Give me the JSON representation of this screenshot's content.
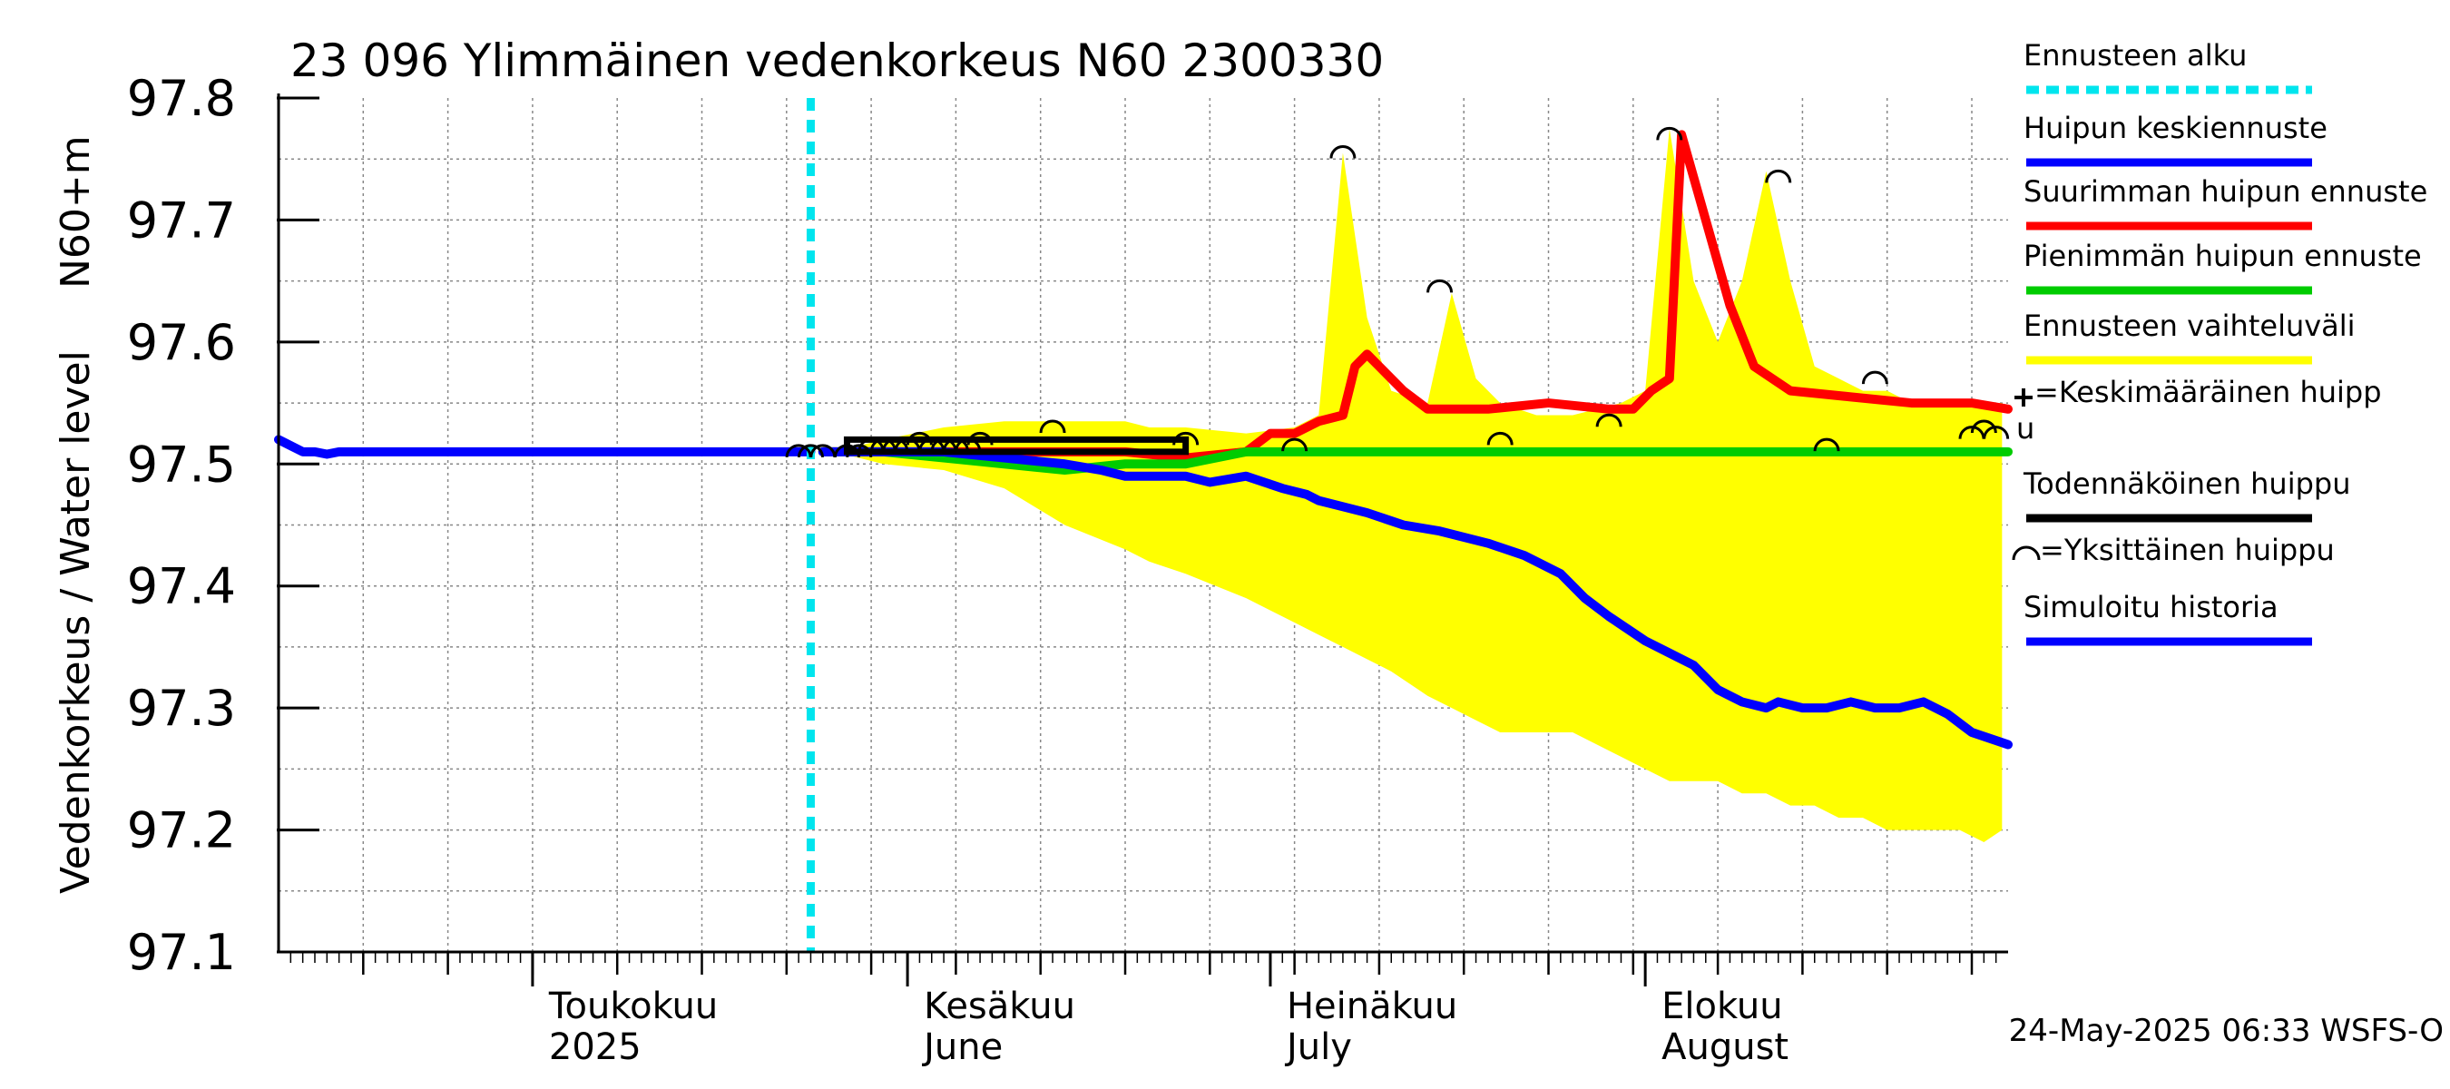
{
  "chart_data": {
    "type": "line",
    "title": "23 096 Ylimmäinen vedenkorkeus N60 2300330",
    "ylabel_left": "Vedenkorkeus / Water level",
    "ylabel_right": "N60+m",
    "ylim": [
      97.1,
      97.8
    ],
    "yticks": [
      97.1,
      97.2,
      97.3,
      97.4,
      97.5,
      97.6,
      97.7,
      97.8
    ],
    "x_unit": "day-of-year 2025",
    "xlim": [
      100,
      243
    ],
    "month_labels": [
      {
        "day": 121,
        "fi": "Toukokuu",
        "en": "2025"
      },
      {
        "day": 152,
        "fi": "Kesäkuu",
        "en": "June"
      },
      {
        "day": 182,
        "fi": "Heinäkuu",
        "en": "July"
      },
      {
        "day": 213,
        "fi": "Elokuu",
        "en": "August"
      }
    ],
    "forecast_start_day": 144,
    "series": [
      {
        "name": "Ennusteen vaihteluväli",
        "kind": "band",
        "color": "#ffff00",
        "x": [
          146,
          150,
          155,
          160,
          165,
          170,
          172,
          175,
          180,
          184,
          186,
          188,
          190,
          192,
          195,
          197,
          199,
          201,
          204,
          207,
          211,
          213,
          215,
          217,
          219,
          221,
          223,
          225,
          227,
          229,
          231,
          233,
          235,
          237,
          239,
          241,
          242.5
        ],
        "upper": [
          97.51,
          97.52,
          97.53,
          97.535,
          97.535,
          97.535,
          97.53,
          97.53,
          97.525,
          97.53,
          97.54,
          97.755,
          97.62,
          97.56,
          97.55,
          97.64,
          97.57,
          97.55,
          97.54,
          97.54,
          97.55,
          97.56,
          97.775,
          97.65,
          97.6,
          97.65,
          97.74,
          97.65,
          97.58,
          97.57,
          97.56,
          97.56,
          97.55,
          97.55,
          97.55,
          97.55,
          97.55
        ],
        "lower": [
          97.51,
          97.5,
          97.495,
          97.48,
          97.45,
          97.43,
          97.42,
          97.41,
          97.39,
          97.37,
          97.36,
          97.35,
          97.34,
          97.33,
          97.31,
          97.3,
          97.29,
          97.28,
          97.28,
          97.28,
          97.26,
          97.25,
          97.24,
          97.24,
          97.24,
          97.23,
          97.23,
          97.22,
          97.22,
          97.21,
          97.21,
          97.2,
          97.2,
          97.2,
          97.2,
          97.19,
          97.2
        ]
      },
      {
        "name": "Suurimman huipun ennuste",
        "color": "#ff0000",
        "x": [
          145,
          150,
          155,
          160,
          165,
          170,
          175,
          180,
          182,
          184,
          186,
          188,
          189,
          190,
          191,
          193,
          195,
          200,
          205,
          210,
          212,
          213.5,
          215,
          216,
          218,
          220,
          222,
          225,
          230,
          235,
          240,
          243
        ],
        "y": [
          97.51,
          97.51,
          97.51,
          97.51,
          97.51,
          97.51,
          97.505,
          97.51,
          97.525,
          97.525,
          97.535,
          97.54,
          97.58,
          97.59,
          97.58,
          97.56,
          97.545,
          97.545,
          97.55,
          97.545,
          97.545,
          97.56,
          97.57,
          97.77,
          97.7,
          97.63,
          97.58,
          97.56,
          97.555,
          97.55,
          97.55,
          97.545
        ]
      },
      {
        "name": "Pienimmän huipun ennuste",
        "color": "#00cc00",
        "x": [
          145,
          150,
          155,
          160,
          165,
          170,
          175,
          180,
          185,
          190,
          195,
          200,
          205,
          210,
          215,
          220,
          225,
          230,
          235,
          240,
          243
        ],
        "y": [
          97.51,
          97.51,
          97.505,
          97.5,
          97.495,
          97.5,
          97.5,
          97.51,
          97.51,
          97.51,
          97.51,
          97.51,
          97.51,
          97.51,
          97.51,
          97.51,
          97.51,
          97.51,
          97.51,
          97.51,
          97.51
        ]
      },
      {
        "name": "Huipun keskiennuste",
        "color": "#0000ff",
        "x": [
          145,
          150,
          155,
          160,
          165,
          168,
          170,
          172,
          175,
          177,
          180,
          183,
          185,
          186,
          188,
          190,
          193,
          196,
          200,
          203,
          206,
          208,
          210,
          213,
          215,
          217,
          219,
          221,
          223,
          224,
          226,
          228,
          230,
          232,
          234,
          236,
          238,
          240,
          243
        ],
        "y": [
          97.51,
          97.51,
          97.51,
          97.505,
          97.5,
          97.495,
          97.49,
          97.49,
          97.49,
          97.485,
          97.49,
          97.48,
          97.475,
          97.47,
          97.465,
          97.46,
          97.45,
          97.445,
          97.435,
          97.425,
          97.41,
          97.39,
          97.375,
          97.355,
          97.345,
          97.335,
          97.315,
          97.305,
          97.3,
          97.305,
          97.3,
          97.3,
          97.305,
          97.3,
          97.3,
          97.305,
          97.295,
          97.28,
          97.27
        ]
      },
      {
        "name": "Simuloitu historia",
        "color": "#0000ff",
        "x": [
          100,
          101,
          102,
          103,
          104,
          105,
          110,
          115,
          120,
          125,
          130,
          135,
          140,
          144
        ],
        "y": [
          97.52,
          97.515,
          97.51,
          97.51,
          97.508,
          97.51,
          97.51,
          97.51,
          97.51,
          97.51,
          97.51,
          97.51,
          97.51,
          97.51
        ]
      }
    ],
    "probable_peak_box": {
      "x_start": 147,
      "x_end": 175,
      "y_low": 97.51,
      "y_high": 97.52
    },
    "single_peaks": [
      {
        "x": 143,
        "y": 97.51
      },
      {
        "x": 144,
        "y": 97.51
      },
      {
        "x": 145,
        "y": 97.51
      },
      {
        "x": 147,
        "y": 97.51
      },
      {
        "x": 148,
        "y": 97.51
      },
      {
        "x": 149,
        "y": 97.515
      },
      {
        "x": 150,
        "y": 97.515
      },
      {
        "x": 151,
        "y": 97.515
      },
      {
        "x": 152,
        "y": 97.515
      },
      {
        "x": 153,
        "y": 97.52
      },
      {
        "x": 154,
        "y": 97.515
      },
      {
        "x": 155,
        "y": 97.515
      },
      {
        "x": 156,
        "y": 97.515
      },
      {
        "x": 157,
        "y": 97.515
      },
      {
        "x": 158,
        "y": 97.52
      },
      {
        "x": 164,
        "y": 97.53
      },
      {
        "x": 175,
        "y": 97.52
      },
      {
        "x": 184,
        "y": 97.515
      },
      {
        "x": 188,
        "y": 97.755
      },
      {
        "x": 196,
        "y": 97.645
      },
      {
        "x": 201,
        "y": 97.52
      },
      {
        "x": 210,
        "y": 97.535
      },
      {
        "x": 215,
        "y": 97.77
      },
      {
        "x": 224,
        "y": 97.735
      },
      {
        "x": 228,
        "y": 97.515
      },
      {
        "x": 232,
        "y": 97.57
      },
      {
        "x": 240,
        "y": 97.525
      },
      {
        "x": 241,
        "y": 97.53
      },
      {
        "x": 242,
        "y": 97.525
      }
    ],
    "legend": [
      {
        "label": "Ennusteen alku",
        "style": "dashed",
        "color": "#00e5ee"
      },
      {
        "label": "Huipun keskiennuste",
        "style": "line",
        "color": "#0000ff"
      },
      {
        "label": "Suurimman huipun ennuste",
        "style": "line",
        "color": "#ff0000"
      },
      {
        "label": "Pienimmän huipun ennuste",
        "style": "line",
        "color": "#00cc00"
      },
      {
        "label": "Ennusteen vaihteluväli",
        "style": "line",
        "color": "#ffff00"
      },
      {
        "label": "=Keskimääräinen huipp",
        "label_cont": "u",
        "style": "plus",
        "color": "#000000"
      },
      {
        "label": "Todennäköinen huippu",
        "style": "line",
        "color": "#000000"
      },
      {
        "label": "=Yksittäinen huippu",
        "style": "arc",
        "color": "#000000"
      },
      {
        "label": "Simuloitu historia",
        "style": "line",
        "color": "#0000ff"
      }
    ],
    "footer": "24-May-2025 06:33 WSFS-O"
  }
}
